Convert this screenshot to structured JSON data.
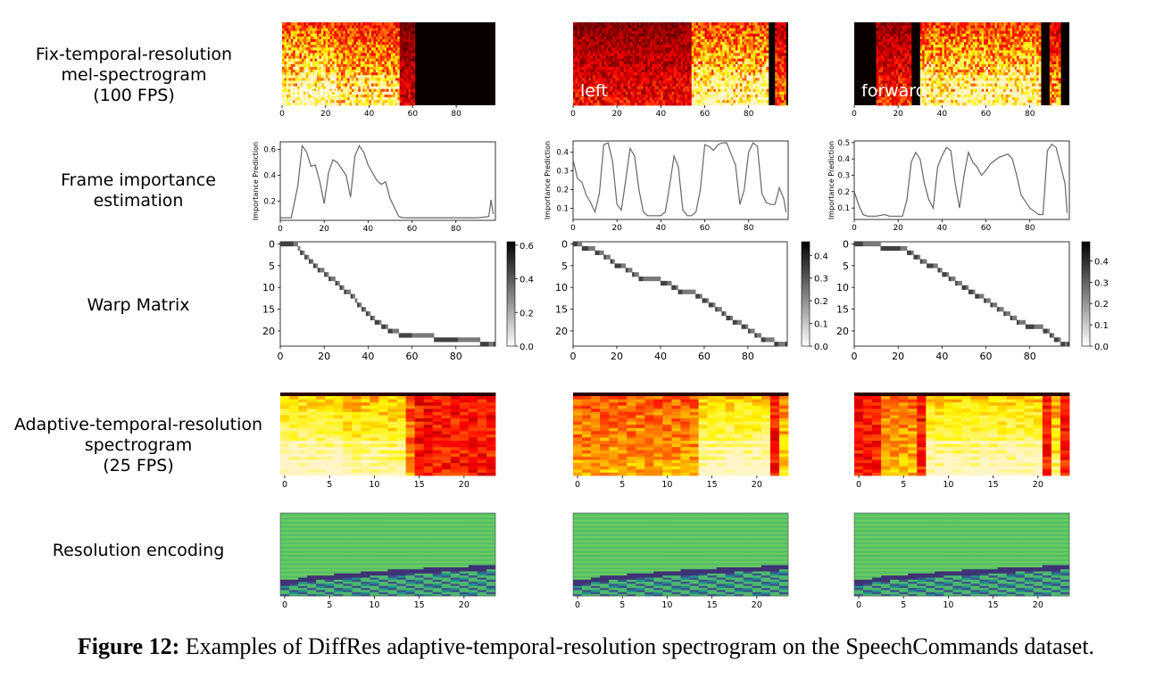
{
  "row_labels": {
    "mel": "Fix-temporal-resolution\nmel-spectrogram\n(100 FPS)",
    "importance": "Frame importance\nestimation",
    "warp": "Warp Matrix",
    "adaptive": "Adaptive-temporal-resolution\nspectrogram\n(25 FPS)",
    "encoding": "Resolution encoding"
  },
  "examples": [
    {
      "word": "sheila"
    },
    {
      "word": "left"
    },
    {
      "word": "forward"
    }
  ],
  "colors": {
    "hot_dark": "#0b0000",
    "hot_red": "#d8180a",
    "hot_yellow": "#fff08a",
    "line": "#666666",
    "viridis_green": "#7ac85a",
    "viridis_dark": "#2e2f72",
    "viridis_teal": "#21918c"
  },
  "axes": {
    "frame_ticks_100": [
      "0",
      "20",
      "40",
      "60",
      "80"
    ],
    "frame_ticks_25": [
      "0",
      "5",
      "10",
      "15",
      "20"
    ],
    "warp_y_ticks": [
      "0",
      "5",
      "10",
      "15",
      "20"
    ],
    "importance_ylabel": "Importance Prediction"
  },
  "chart_data": [
    {
      "type": "line",
      "example": "sheila",
      "ylabel": "Importance Prediction",
      "xlim": [
        0,
        98
      ],
      "ylim": [
        0.05,
        0.66
      ],
      "yticks": [
        "0.2",
        "0.4",
        "0.6"
      ],
      "x": [
        0,
        5,
        8,
        10,
        12,
        14,
        16,
        18,
        20,
        22,
        24,
        26,
        28,
        30,
        32,
        34,
        36,
        38,
        40,
        42,
        44,
        46,
        48,
        50,
        52,
        54,
        56,
        60,
        70,
        80,
        90,
        95,
        96,
        97
      ],
      "y": [
        0.07,
        0.07,
        0.32,
        0.63,
        0.58,
        0.47,
        0.48,
        0.35,
        0.18,
        0.42,
        0.52,
        0.5,
        0.45,
        0.4,
        0.23,
        0.55,
        0.63,
        0.58,
        0.48,
        0.42,
        0.36,
        0.33,
        0.35,
        0.22,
        0.15,
        0.08,
        0.07,
        0.07,
        0.07,
        0.07,
        0.07,
        0.08,
        0.21,
        0.1
      ]
    },
    {
      "type": "line",
      "example": "left",
      "ylabel": "Importance Prediction",
      "xlim": [
        0,
        98
      ],
      "ylim": [
        0.04,
        0.46
      ],
      "yticks": [
        "0.1",
        "0.2",
        "0.3",
        "0.4"
      ],
      "x": [
        0,
        2,
        4,
        6,
        8,
        10,
        12,
        14,
        16,
        18,
        20,
        22,
        24,
        26,
        28,
        30,
        32,
        34,
        36,
        38,
        40,
        42,
        44,
        46,
        48,
        50,
        52,
        54,
        56,
        58,
        60,
        62,
        64,
        66,
        68,
        70,
        72,
        74,
        76,
        78,
        80,
        82,
        84,
        86,
        88,
        90,
        92,
        94,
        96,
        97
      ],
      "y": [
        0.36,
        0.26,
        0.24,
        0.17,
        0.13,
        0.08,
        0.18,
        0.44,
        0.45,
        0.35,
        0.12,
        0.09,
        0.25,
        0.42,
        0.38,
        0.2,
        0.08,
        0.06,
        0.06,
        0.06,
        0.06,
        0.08,
        0.22,
        0.38,
        0.32,
        0.09,
        0.06,
        0.06,
        0.08,
        0.2,
        0.44,
        0.43,
        0.41,
        0.44,
        0.45,
        0.45,
        0.39,
        0.33,
        0.12,
        0.2,
        0.4,
        0.45,
        0.43,
        0.18,
        0.13,
        0.12,
        0.12,
        0.21,
        0.15,
        0.08
      ]
    },
    {
      "type": "line",
      "example": "forward",
      "ylabel": "Importance Prediction",
      "xlim": [
        0,
        98
      ],
      "ylim": [
        0.03,
        0.51
      ],
      "yticks": [
        "0.1",
        "0.2",
        "0.3",
        "0.4",
        "0.5"
      ],
      "x": [
        0,
        2,
        4,
        6,
        10,
        14,
        16,
        18,
        22,
        24,
        26,
        28,
        30,
        32,
        34,
        36,
        38,
        40,
        42,
        44,
        46,
        48,
        50,
        52,
        54,
        56,
        58,
        60,
        62,
        64,
        66,
        68,
        70,
        72,
        74,
        76,
        78,
        80,
        82,
        84,
        86,
        88,
        90,
        92,
        94,
        96,
        97
      ],
      "y": [
        0.2,
        0.12,
        0.06,
        0.05,
        0.05,
        0.06,
        0.05,
        0.05,
        0.05,
        0.15,
        0.38,
        0.44,
        0.4,
        0.25,
        0.15,
        0.1,
        0.35,
        0.42,
        0.47,
        0.45,
        0.25,
        0.1,
        0.3,
        0.44,
        0.38,
        0.35,
        0.3,
        0.33,
        0.37,
        0.39,
        0.41,
        0.42,
        0.43,
        0.4,
        0.3,
        0.18,
        0.14,
        0.1,
        0.08,
        0.06,
        0.06,
        0.45,
        0.49,
        0.47,
        0.36,
        0.25,
        0.07
      ]
    }
  ],
  "warp_colorbars": [
    {
      "ticks": [
        "0.0",
        "0.2",
        "0.4",
        "0.6"
      ],
      "max": 0.62
    },
    {
      "ticks": [
        "0.0",
        "0.1",
        "0.2",
        "0.3",
        "0.4"
      ],
      "max": 0.46
    },
    {
      "ticks": [
        "0.0",
        "0.1",
        "0.2",
        "0.3",
        "0.4"
      ],
      "max": 0.49
    }
  ],
  "caption": {
    "label": "Figure 12:",
    "text": " Examples of DiffRes adaptive-temporal-resolution spectrogram on the SpeechCommands dataset."
  }
}
